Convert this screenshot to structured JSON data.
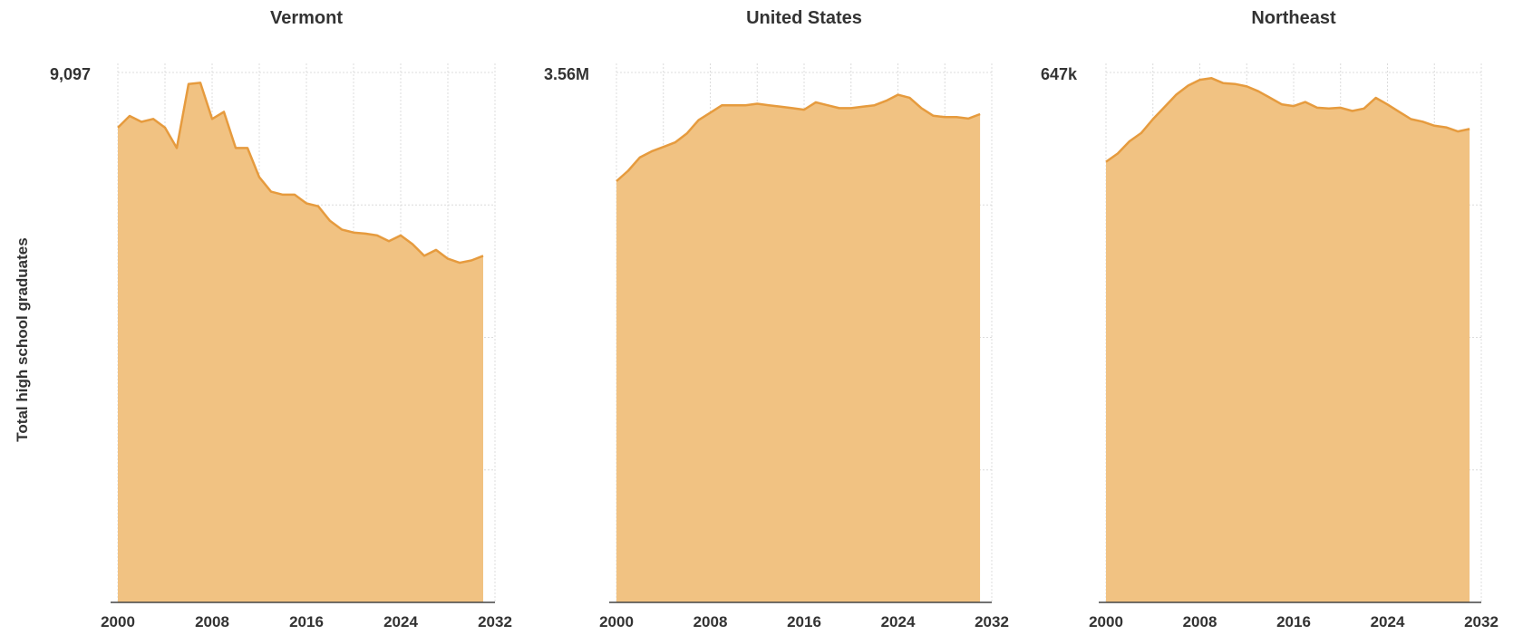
{
  "ylabel": "Total high school graduates",
  "chart_data": [
    {
      "type": "area",
      "title": "Vermont",
      "top_label": "9,097",
      "xticks": [
        2000,
        2008,
        2016,
        2024,
        2032
      ],
      "xlim": [
        2000,
        2032
      ],
      "ylim": [
        0,
        9097
      ],
      "color": "#f1c282",
      "line_color": "#e69b3e",
      "x": [
        2000,
        2001,
        2002,
        2003,
        2004,
        2005,
        2006,
        2007,
        2008,
        2009,
        2010,
        2011,
        2012,
        2013,
        2014,
        2015,
        2016,
        2017,
        2018,
        2019,
        2020,
        2021,
        2022,
        2023,
        2024,
        2025,
        2026,
        2027,
        2028,
        2029,
        2030,
        2031
      ],
      "values": [
        8150,
        8350,
        8250,
        8300,
        8150,
        7800,
        8900,
        8920,
        8300,
        8420,
        7800,
        7800,
        7300,
        7050,
        7000,
        7000,
        6850,
        6800,
        6550,
        6400,
        6350,
        6330,
        6300,
        6200,
        6300,
        6150,
        5950,
        6050,
        5900,
        5830,
        5870,
        5950
      ]
    },
    {
      "type": "area",
      "title": "United States",
      "top_label": "3.56M",
      "xticks": [
        2000,
        2008,
        2016,
        2024,
        2032
      ],
      "xlim": [
        2000,
        2032
      ],
      "ylim": [
        0,
        3560000
      ],
      "color": "#f1c282",
      "line_color": "#e69b3e",
      "x": [
        2000,
        2001,
        2002,
        2003,
        2004,
        2005,
        2006,
        2007,
        2008,
        2009,
        2010,
        2011,
        2012,
        2013,
        2014,
        2015,
        2016,
        2017,
        2018,
        2019,
        2020,
        2021,
        2022,
        2023,
        2024,
        2025,
        2026,
        2027,
        2028,
        2029,
        2030,
        2031
      ],
      "values": [
        2830000,
        2900000,
        2990000,
        3030000,
        3060000,
        3090000,
        3150000,
        3240000,
        3290000,
        3340000,
        3340000,
        3340000,
        3350000,
        3340000,
        3330000,
        3320000,
        3310000,
        3360000,
        3340000,
        3320000,
        3320000,
        3330000,
        3340000,
        3370000,
        3410000,
        3390000,
        3320000,
        3270000,
        3260000,
        3260000,
        3250000,
        3280000
      ]
    },
    {
      "type": "area",
      "title": "Northeast",
      "top_label": "647k",
      "xticks": [
        2000,
        2008,
        2016,
        2024,
        2032
      ],
      "xlim": [
        2000,
        2032
      ],
      "ylim": [
        0,
        647000
      ],
      "color": "#f1c282",
      "line_color": "#e69b3e",
      "x": [
        2000,
        2001,
        2002,
        2003,
        2004,
        2005,
        2006,
        2007,
        2008,
        2009,
        2010,
        2011,
        2012,
        2013,
        2014,
        2015,
        2016,
        2017,
        2018,
        2019,
        2020,
        2021,
        2022,
        2023,
        2024,
        2025,
        2026,
        2027,
        2028,
        2029,
        2030,
        2031
      ],
      "values": [
        538000,
        548000,
        563000,
        573000,
        590000,
        605000,
        620000,
        631000,
        638000,
        640000,
        634000,
        633000,
        630000,
        624000,
        616000,
        608000,
        606000,
        611000,
        604000,
        603000,
        604000,
        600000,
        603000,
        616000,
        608000,
        599000,
        590000,
        587000,
        582000,
        580000,
        575000,
        578000
      ]
    }
  ]
}
